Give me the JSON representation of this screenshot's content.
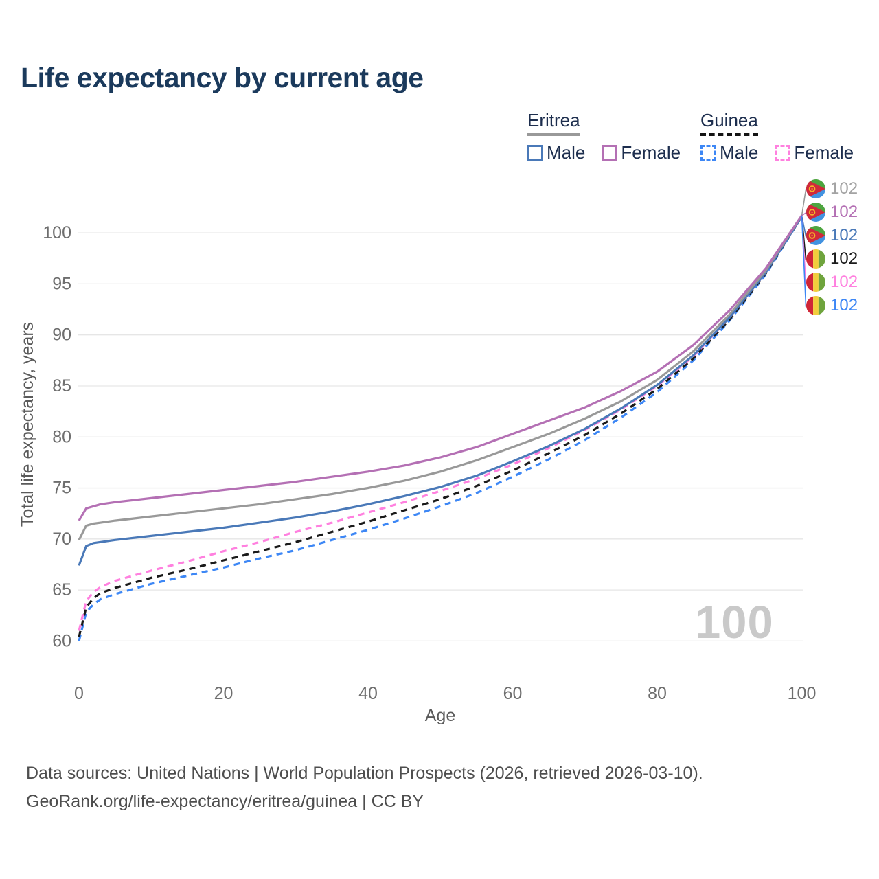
{
  "title": "Life expectancy by current age",
  "legend": {
    "groups": [
      {
        "label": "Eritrea",
        "line_style": "solid",
        "line_color": "#999999",
        "items": [
          {
            "label": "Male",
            "color": "#4a79b8",
            "style": "solid"
          },
          {
            "label": "Female",
            "color": "#b470b4",
            "style": "solid"
          }
        ]
      },
      {
        "label": "Guinea",
        "line_style": "dashed",
        "line_color": "#141414",
        "items": [
          {
            "label": "Male",
            "color": "#3d87f5",
            "style": "dashed"
          },
          {
            "label": "Female",
            "color": "#ff80df",
            "style": "dashed"
          }
        ]
      }
    ]
  },
  "watermark": "100",
  "footer": {
    "line1": "Data sources: United Nations | World Population Prospects (2026, retrieved 2026-03-10).",
    "line2": "GeoRank.org/life-expectancy/eritrea/guinea | CC BY"
  },
  "chart_data": {
    "type": "line",
    "title": "Life expectancy by current age",
    "xlabel": "Age",
    "ylabel": "Total life expectancy, years",
    "x_ticks": [
      0,
      20,
      40,
      60,
      80,
      100
    ],
    "y_ticks": [
      60,
      65,
      70,
      75,
      80,
      85,
      90,
      95,
      100
    ],
    "xlim": [
      0,
      100
    ],
    "ylim": [
      60,
      102.5
    ],
    "grid": "horizontal-only",
    "legend_position": "top-right",
    "x": [
      0,
      1,
      2,
      3,
      5,
      10,
      15,
      20,
      25,
      30,
      35,
      40,
      45,
      50,
      55,
      60,
      65,
      70,
      75,
      80,
      85,
      90,
      95,
      100
    ],
    "series": [
      {
        "name": "Eritrea",
        "country": "Eritrea",
        "sex": "both",
        "color": "#999999",
        "dash": "solid",
        "flag": "eritrea",
        "end_label": "102",
        "end_label_color": "#a3a3a3",
        "values": [
          69.9,
          71.3,
          71.5,
          71.6,
          71.8,
          72.2,
          72.6,
          73.0,
          73.4,
          73.9,
          74.4,
          75.0,
          75.7,
          76.6,
          77.7,
          79.0,
          80.3,
          81.8,
          83.5,
          85.6,
          88.4,
          92.0,
          96.3,
          101.7
        ]
      },
      {
        "name": "Eritrea Female",
        "country": "Eritrea",
        "sex": "female",
        "color": "#b470b4",
        "dash": "solid",
        "flag": "eritrea",
        "end_label": "102",
        "end_label_color": "#b470b4",
        "values": [
          71.8,
          73.0,
          73.2,
          73.4,
          73.6,
          74.0,
          74.4,
          74.8,
          75.2,
          75.6,
          76.1,
          76.6,
          77.2,
          78.0,
          79.0,
          80.3,
          81.6,
          82.9,
          84.5,
          86.4,
          89.0,
          92.4,
          96.5,
          101.7
        ]
      },
      {
        "name": "Eritrea Male",
        "country": "Eritrea",
        "sex": "male",
        "color": "#4a79b8",
        "dash": "solid",
        "flag": "eritrea",
        "end_label": "102",
        "end_label_color": "#4a79b8",
        "values": [
          67.4,
          69.3,
          69.6,
          69.7,
          69.9,
          70.3,
          70.7,
          71.1,
          71.6,
          72.1,
          72.7,
          73.4,
          74.2,
          75.1,
          76.2,
          77.6,
          79.1,
          80.8,
          82.8,
          85.1,
          88.0,
          91.7,
          96.1,
          101.6
        ]
      },
      {
        "name": "Guinea",
        "country": "Guinea",
        "sex": "both",
        "color": "#1a1a1a",
        "dash": "dashed",
        "flag": "guinea",
        "end_label": "102",
        "end_label_color": "#1a1a1a",
        "values": [
          60.4,
          63.3,
          64.2,
          64.7,
          65.2,
          66.2,
          67.0,
          67.9,
          68.8,
          69.7,
          70.7,
          71.7,
          72.8,
          73.9,
          75.2,
          76.7,
          78.4,
          80.2,
          82.3,
          84.7,
          87.7,
          91.5,
          96.0,
          101.6
        ]
      },
      {
        "name": "Guinea Female",
        "country": "Guinea",
        "sex": "female",
        "color": "#ff80df",
        "dash": "dashed",
        "flag": "guinea",
        "end_label": "102",
        "end_label_color": "#ff80df",
        "values": [
          61.0,
          63.9,
          64.8,
          65.3,
          65.9,
          66.9,
          67.8,
          68.8,
          69.7,
          70.7,
          71.6,
          72.6,
          73.6,
          74.7,
          75.9,
          77.3,
          78.9,
          80.7,
          82.7,
          85.0,
          87.9,
          91.7,
          96.1,
          101.6
        ]
      },
      {
        "name": "Guinea Male",
        "country": "Guinea",
        "sex": "male",
        "color": "#3d87f5",
        "dash": "dashed",
        "flag": "guinea",
        "end_label": "102",
        "end_label_color": "#3d87f5",
        "values": [
          60.0,
          62.8,
          63.6,
          64.1,
          64.6,
          65.6,
          66.4,
          67.2,
          68.1,
          68.9,
          69.9,
          70.9,
          72.0,
          73.2,
          74.5,
          76.1,
          77.8,
          79.7,
          81.9,
          84.4,
          87.5,
          91.4,
          95.9,
          101.6
        ]
      }
    ],
    "label_order": [
      0,
      1,
      2,
      3,
      4,
      5
    ]
  },
  "colors": {
    "grid": "#e6e6e6",
    "tick_text": "#6e6e6e",
    "axis_title": "#5a5a5a",
    "title_text": "#1b3a5c",
    "watermark": "#c9c9c9"
  }
}
